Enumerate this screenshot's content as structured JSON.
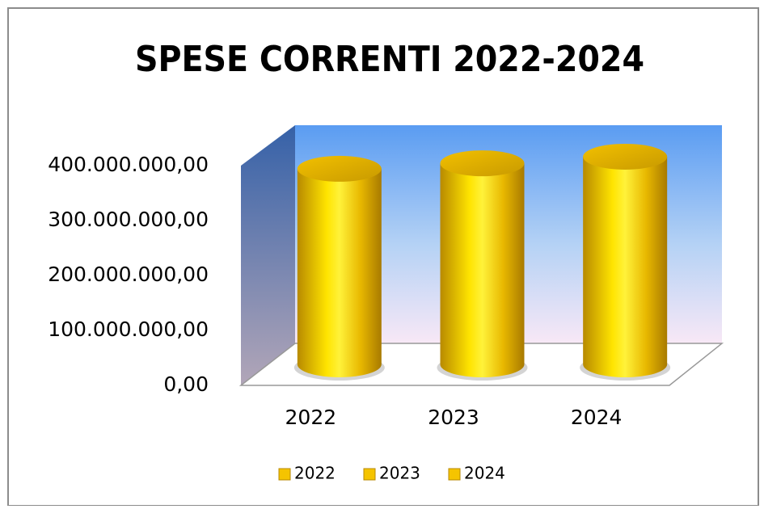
{
  "chart_data": {
    "type": "cylinder",
    "title": "SPESE CORRENTI 2022-2024",
    "categories": [
      "2022",
      "2023",
      "2024"
    ],
    "values": [
      356000000,
      366000000,
      378000000
    ],
    "color": "#f5c400",
    "ylim": [
      0,
      400000000
    ],
    "yticks": [
      {
        "value": 0,
        "label": "0,00"
      },
      {
        "value": 100000000,
        "label": "100.000.000,00"
      },
      {
        "value": 200000000,
        "label": "200.000.000,00"
      },
      {
        "value": 300000000,
        "label": "300.000.000,00"
      },
      {
        "value": 400000000,
        "label": "400.000.000,00"
      }
    ],
    "grid": false,
    "legend": "bottom"
  }
}
